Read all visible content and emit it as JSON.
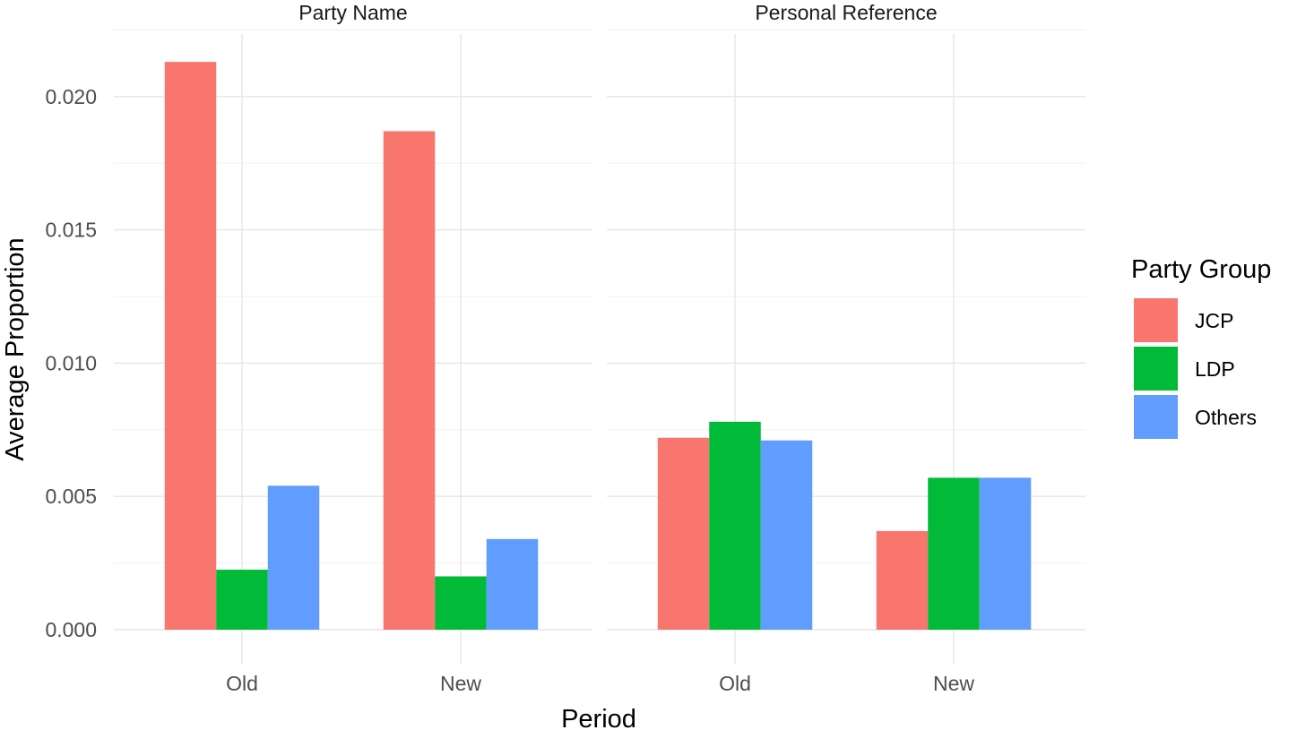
{
  "chart_data": {
    "type": "bar",
    "layout": "faceted-grouped",
    "xlabel": "Period",
    "ylabel": "Average Proportion",
    "ylim": [
      0,
      0.0225
    ],
    "yticks": [
      "0.000",
      "0.005",
      "0.010",
      "0.015",
      "0.020"
    ],
    "ytick_values": [
      0,
      0.005,
      0.01,
      0.015,
      0.02
    ],
    "categories": [
      "Old",
      "New"
    ],
    "legend": {
      "title": "Party Group",
      "placement": "right",
      "entries": [
        "JCP",
        "LDP",
        "Others"
      ]
    },
    "colors": {
      "JCP": "#F8766D",
      "LDP": "#00BA38",
      "Others": "#619CFF"
    },
    "grid": true,
    "panels": [
      {
        "title": "Party Name",
        "series": [
          {
            "name": "JCP",
            "values": [
              0.0213,
              0.0187
            ]
          },
          {
            "name": "LDP",
            "values": [
              0.00225,
              0.002
            ]
          },
          {
            "name": "Others",
            "values": [
              0.0054,
              0.0034
            ]
          }
        ]
      },
      {
        "title": "Personal Reference",
        "series": [
          {
            "name": "JCP",
            "values": [
              0.0072,
              0.0037
            ]
          },
          {
            "name": "LDP",
            "values": [
              0.0078,
              0.0057
            ]
          },
          {
            "name": "Others",
            "values": [
              0.0071,
              0.0057
            ]
          }
        ]
      }
    ]
  }
}
